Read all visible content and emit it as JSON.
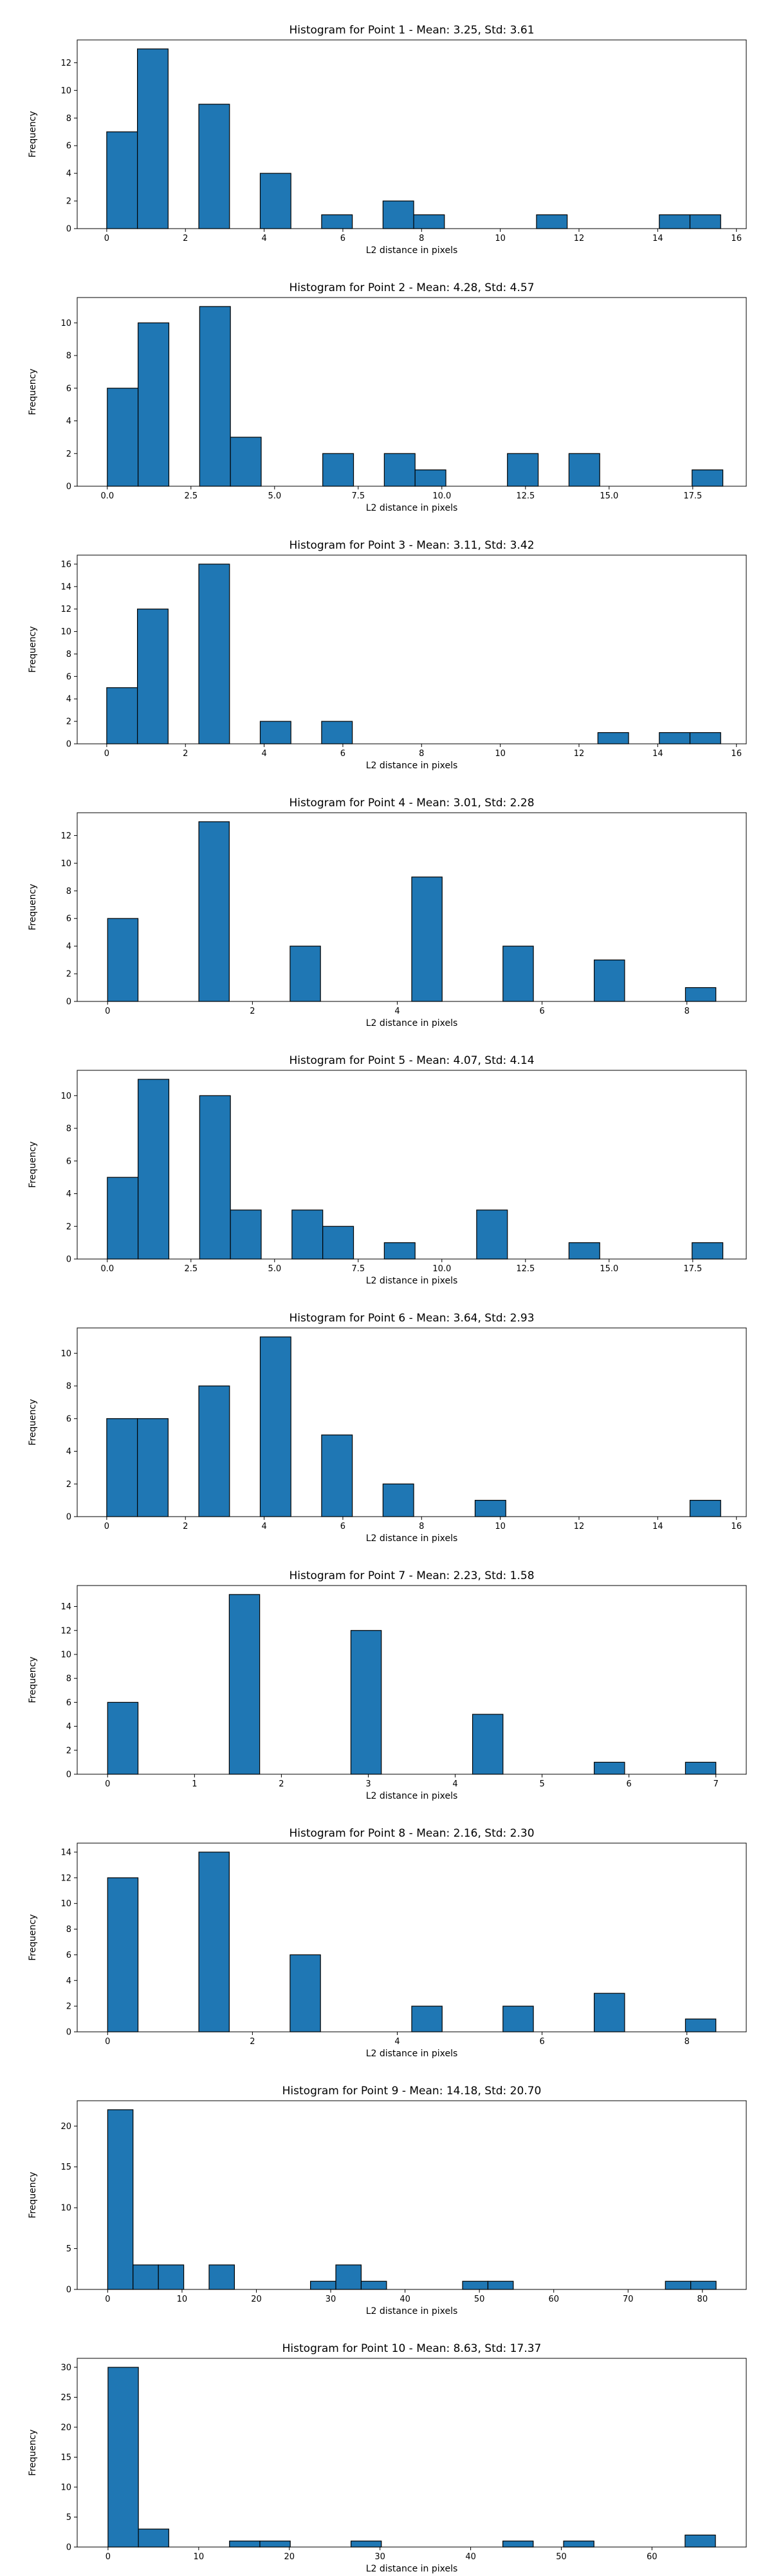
{
  "chart_data": [
    {
      "type": "bar",
      "title": "Histogram for Point 1 - Mean: 3.25, Std: 3.61",
      "xlabel": "L2 distance in pixels",
      "ylabel": "Frequency",
      "xlim": [
        -0.75,
        16.25
      ],
      "ylim": [
        0,
        13.65
      ],
      "xticks": [
        0,
        2,
        4,
        6,
        8,
        10,
        12,
        14,
        16
      ],
      "yticks": [
        0,
        2,
        4,
        6,
        8,
        10,
        12
      ],
      "bins": [
        {
          "x0": 0.0,
          "x1": 0.78,
          "count": 7
        },
        {
          "x0": 0.78,
          "x1": 1.56,
          "count": 13
        },
        {
          "x0": 2.34,
          "x1": 3.12,
          "count": 9
        },
        {
          "x0": 3.9,
          "x1": 4.68,
          "count": 4
        },
        {
          "x0": 5.46,
          "x1": 6.24,
          "count": 1
        },
        {
          "x0": 7.02,
          "x1": 7.8,
          "count": 2
        },
        {
          "x0": 7.8,
          "x1": 8.58,
          "count": 1
        },
        {
          "x0": 10.92,
          "x1": 11.7,
          "count": 1
        },
        {
          "x0": 14.04,
          "x1": 14.82,
          "count": 1
        },
        {
          "x0": 14.82,
          "x1": 15.6,
          "count": 1
        }
      ]
    },
    {
      "type": "bar",
      "title": "Histogram for Point 2 - Mean: 4.28, Std: 4.57",
      "xlabel": "L2 distance in pixels",
      "ylabel": "Frequency",
      "xlim": [
        -0.9,
        19.1
      ],
      "ylim": [
        0,
        11.55
      ],
      "xticks": [
        0.0,
        2.5,
        5.0,
        7.5,
        10.0,
        12.5,
        15.0,
        17.5
      ],
      "yticks": [
        0,
        2,
        4,
        6,
        8,
        10
      ],
      "bins": [
        {
          "x0": 0.0,
          "x1": 0.92,
          "count": 6
        },
        {
          "x0": 0.92,
          "x1": 1.84,
          "count": 10
        },
        {
          "x0": 2.76,
          "x1": 3.68,
          "count": 11
        },
        {
          "x0": 3.68,
          "x1": 4.6,
          "count": 3
        },
        {
          "x0": 6.44,
          "x1": 7.36,
          "count": 2
        },
        {
          "x0": 8.28,
          "x1": 9.2,
          "count": 2
        },
        {
          "x0": 9.2,
          "x1": 10.12,
          "count": 1
        },
        {
          "x0": 11.96,
          "x1": 12.88,
          "count": 2
        },
        {
          "x0": 13.8,
          "x1": 14.72,
          "count": 2
        },
        {
          "x0": 17.48,
          "x1": 18.4,
          "count": 1
        }
      ]
    },
    {
      "type": "bar",
      "title": "Histogram for Point 3 - Mean: 3.11, Std: 3.42",
      "xlabel": "L2 distance in pixels",
      "ylabel": "Frequency",
      "xlim": [
        -0.75,
        16.25
      ],
      "ylim": [
        0,
        16.8
      ],
      "xticks": [
        0,
        2,
        4,
        6,
        8,
        10,
        12,
        14,
        16
      ],
      "yticks": [
        0,
        2,
        4,
        6,
        8,
        10,
        12,
        14,
        16
      ],
      "bins": [
        {
          "x0": 0.0,
          "x1": 0.78,
          "count": 5
        },
        {
          "x0": 0.78,
          "x1": 1.56,
          "count": 12
        },
        {
          "x0": 2.34,
          "x1": 3.12,
          "count": 16
        },
        {
          "x0": 3.9,
          "x1": 4.68,
          "count": 2
        },
        {
          "x0": 5.46,
          "x1": 6.24,
          "count": 2
        },
        {
          "x0": 12.48,
          "x1": 13.26,
          "count": 1
        },
        {
          "x0": 14.04,
          "x1": 14.82,
          "count": 1
        },
        {
          "x0": 14.82,
          "x1": 15.6,
          "count": 1
        }
      ]
    },
    {
      "type": "bar",
      "title": "Histogram for Point 4 - Mean: 3.01, Std: 2.28",
      "xlabel": "L2 distance in pixels",
      "ylabel": "Frequency",
      "xlim": [
        -0.42,
        8.82
      ],
      "ylim": [
        0,
        13.65
      ],
      "xticks": [
        0,
        2,
        4,
        6,
        8
      ],
      "yticks": [
        0,
        2,
        4,
        6,
        8,
        10,
        12
      ],
      "bins": [
        {
          "x0": 0.0,
          "x1": 0.42,
          "count": 6
        },
        {
          "x0": 1.26,
          "x1": 1.68,
          "count": 13
        },
        {
          "x0": 2.52,
          "x1": 2.94,
          "count": 4
        },
        {
          "x0": 4.2,
          "x1": 4.62,
          "count": 9
        },
        {
          "x0": 5.46,
          "x1": 5.88,
          "count": 4
        },
        {
          "x0": 6.72,
          "x1": 7.14,
          "count": 3
        },
        {
          "x0": 7.98,
          "x1": 8.4,
          "count": 1
        }
      ]
    },
    {
      "type": "bar",
      "title": "Histogram for Point 5 - Mean: 4.07, Std: 4.14",
      "xlabel": "L2 distance in pixels",
      "ylabel": "Frequency",
      "xlim": [
        -0.9,
        19.1
      ],
      "ylim": [
        0,
        11.55
      ],
      "xticks": [
        0.0,
        2.5,
        5.0,
        7.5,
        10.0,
        12.5,
        15.0,
        17.5
      ],
      "yticks": [
        0,
        2,
        4,
        6,
        8,
        10
      ],
      "bins": [
        {
          "x0": 0.0,
          "x1": 0.92,
          "count": 5
        },
        {
          "x0": 0.92,
          "x1": 1.84,
          "count": 11
        },
        {
          "x0": 2.76,
          "x1": 3.68,
          "count": 10
        },
        {
          "x0": 3.68,
          "x1": 4.6,
          "count": 3
        },
        {
          "x0": 5.52,
          "x1": 6.44,
          "count": 3
        },
        {
          "x0": 6.44,
          "x1": 7.36,
          "count": 2
        },
        {
          "x0": 8.28,
          "x1": 9.2,
          "count": 1
        },
        {
          "x0": 11.04,
          "x1": 11.96,
          "count": 3
        },
        {
          "x0": 13.8,
          "x1": 14.72,
          "count": 1
        },
        {
          "x0": 17.48,
          "x1": 18.4,
          "count": 1
        }
      ]
    },
    {
      "type": "bar",
      "title": "Histogram for Point 6 - Mean: 3.64, Std: 2.93",
      "xlabel": "L2 distance in pixels",
      "ylabel": "Frequency",
      "xlim": [
        -0.75,
        16.25
      ],
      "ylim": [
        0,
        11.55
      ],
      "xticks": [
        0,
        2,
        4,
        6,
        8,
        10,
        12,
        14,
        16
      ],
      "yticks": [
        0,
        2,
        4,
        6,
        8,
        10
      ],
      "bins": [
        {
          "x0": 0.0,
          "x1": 0.78,
          "count": 6
        },
        {
          "x0": 0.78,
          "x1": 1.56,
          "count": 6
        },
        {
          "x0": 2.34,
          "x1": 3.12,
          "count": 8
        },
        {
          "x0": 3.9,
          "x1": 4.68,
          "count": 11
        },
        {
          "x0": 5.46,
          "x1": 6.24,
          "count": 5
        },
        {
          "x0": 7.02,
          "x1": 7.8,
          "count": 2
        },
        {
          "x0": 9.36,
          "x1": 10.14,
          "count": 1
        },
        {
          "x0": 14.82,
          "x1": 15.6,
          "count": 1
        }
      ]
    },
    {
      "type": "bar",
      "title": "Histogram for Point 7 - Mean: 2.23, Std: 1.58",
      "xlabel": "L2 distance in pixels",
      "ylabel": "Frequency",
      "xlim": [
        -0.35,
        7.35
      ],
      "ylim": [
        0,
        15.75
      ],
      "xticks": [
        0,
        1,
        2,
        3,
        4,
        5,
        6,
        7
      ],
      "yticks": [
        0,
        2,
        4,
        6,
        8,
        10,
        12,
        14
      ],
      "bins": [
        {
          "x0": 0.0,
          "x1": 0.35,
          "count": 6
        },
        {
          "x0": 1.4,
          "x1": 1.75,
          "count": 15
        },
        {
          "x0": 2.8,
          "x1": 3.15,
          "count": 12
        },
        {
          "x0": 4.2,
          "x1": 4.55,
          "count": 5
        },
        {
          "x0": 5.6,
          "x1": 5.95,
          "count": 1
        },
        {
          "x0": 6.65,
          "x1": 7.0,
          "count": 1
        }
      ]
    },
    {
      "type": "bar",
      "title": "Histogram for Point 8 - Mean: 2.16, Std: 2.30",
      "xlabel": "L2 distance in pixels",
      "ylabel": "Frequency",
      "xlim": [
        -0.42,
        8.82
      ],
      "ylim": [
        0,
        14.7
      ],
      "xticks": [
        0,
        2,
        4,
        6,
        8
      ],
      "yticks": [
        0,
        2,
        4,
        6,
        8,
        10,
        12,
        14
      ],
      "bins": [
        {
          "x0": 0.0,
          "x1": 0.42,
          "count": 12
        },
        {
          "x0": 1.26,
          "x1": 1.68,
          "count": 14
        },
        {
          "x0": 2.52,
          "x1": 2.94,
          "count": 6
        },
        {
          "x0": 4.2,
          "x1": 4.62,
          "count": 2
        },
        {
          "x0": 5.46,
          "x1": 5.88,
          "count": 2
        },
        {
          "x0": 6.72,
          "x1": 7.14,
          "count": 3
        },
        {
          "x0": 7.98,
          "x1": 8.4,
          "count": 1
        }
      ]
    },
    {
      "type": "bar",
      "title": "Histogram for Point 9 - Mean: 14.18, Std: 20.70",
      "xlabel": "L2 distance in pixels",
      "ylabel": "Frequency",
      "xlim": [
        -4.1,
        85.9
      ],
      "ylim": [
        0,
        23.1
      ],
      "xticks": [
        0,
        10,
        20,
        30,
        40,
        50,
        60,
        70,
        80
      ],
      "yticks": [
        0,
        5,
        10,
        15,
        20
      ],
      "bins": [
        {
          "x0": 0.0,
          "x1": 3.41,
          "count": 22
        },
        {
          "x0": 3.41,
          "x1": 6.82,
          "count": 3
        },
        {
          "x0": 6.82,
          "x1": 10.23,
          "count": 3
        },
        {
          "x0": 13.64,
          "x1": 17.05,
          "count": 3
        },
        {
          "x0": 27.28,
          "x1": 30.69,
          "count": 1
        },
        {
          "x0": 30.69,
          "x1": 34.1,
          "count": 3
        },
        {
          "x0": 34.1,
          "x1": 37.51,
          "count": 1
        },
        {
          "x0": 47.74,
          "x1": 51.15,
          "count": 1
        },
        {
          "x0": 51.15,
          "x1": 54.56,
          "count": 1
        },
        {
          "x0": 75.02,
          "x1": 78.43,
          "count": 1
        },
        {
          "x0": 78.43,
          "x1": 81.84,
          "count": 1
        }
      ]
    },
    {
      "type": "bar",
      "title": "Histogram for Point 10 - Mean: 8.63, Std: 17.37",
      "xlabel": "L2 distance in pixels",
      "ylabel": "Frequency",
      "xlim": [
        -3.4,
        70.4
      ],
      "ylim": [
        0,
        31.5
      ],
      "xticks": [
        0,
        10,
        20,
        30,
        40,
        50,
        60
      ],
      "yticks": [
        0,
        5,
        10,
        15,
        20,
        25,
        30
      ],
      "bins": [
        {
          "x0": 0.0,
          "x1": 3.35,
          "count": 30
        },
        {
          "x0": 3.35,
          "x1": 6.7,
          "count": 3
        },
        {
          "x0": 13.4,
          "x1": 16.75,
          "count": 1
        },
        {
          "x0": 16.75,
          "x1": 20.1,
          "count": 1
        },
        {
          "x0": 26.8,
          "x1": 30.15,
          "count": 1
        },
        {
          "x0": 43.55,
          "x1": 46.9,
          "count": 1
        },
        {
          "x0": 50.25,
          "x1": 53.6,
          "count": 1
        },
        {
          "x0": 63.65,
          "x1": 67.0,
          "count": 2
        }
      ]
    }
  ],
  "colors": {
    "bar_fill": "#1f77b4",
    "bar_edge": "#000000"
  }
}
